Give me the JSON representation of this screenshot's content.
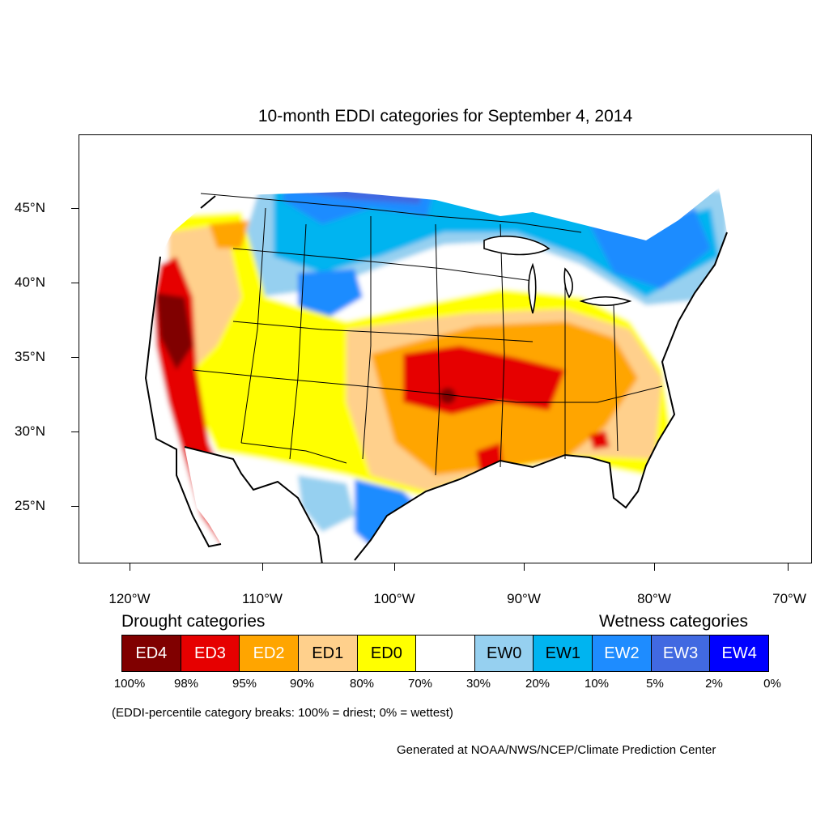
{
  "title": "10-month EDDI categories for September 4, 2014",
  "latitude_labels": [
    "45°N",
    "40°N",
    "35°N",
    "30°N",
    "25°N"
  ],
  "longitude_labels": [
    "120°W",
    "110°W",
    "100°W",
    "90°W",
    "80°W",
    "70°W"
  ],
  "legend": {
    "drought_heading": "Drought categories",
    "wetness_heading": "Wetness categories",
    "categories": [
      {
        "label": "ED4",
        "color": "#800000",
        "text_color": "#ffffff"
      },
      {
        "label": "ED3",
        "color": "#e60000",
        "text_color": "#ffffff"
      },
      {
        "label": "ED2",
        "color": "#ffa500",
        "text_color": "#ffffff"
      },
      {
        "label": "ED1",
        "color": "#ffd08c",
        "text_color": "#000000"
      },
      {
        "label": "ED0",
        "color": "#ffff00",
        "text_color": "#000000"
      },
      {
        "label": "",
        "color": "#ffffff",
        "text_color": "#000000"
      },
      {
        "label": "EW0",
        "color": "#96d0f0",
        "text_color": "#000000"
      },
      {
        "label": "EW1",
        "color": "#00b4f0",
        "text_color": "#000000"
      },
      {
        "label": "EW2",
        "color": "#1e8cff",
        "text_color": "#ffffff"
      },
      {
        "label": "EW3",
        "color": "#4169e1",
        "text_color": "#ffffff"
      },
      {
        "label": "EW4",
        "color": "#0000ff",
        "text_color": "#ffffff"
      }
    ],
    "percentile_breaks": [
      "100%",
      "98%",
      "95%",
      "90%",
      "80%",
      "70%",
      "30%",
      "20%",
      "10%",
      "5%",
      "2%",
      "0%"
    ]
  },
  "note": "(EDDI-percentile category breaks: 100% = driest; 0% = wettest)",
  "credit": "Generated at NOAA/NWS/NCEP/Climate Prediction Center"
}
